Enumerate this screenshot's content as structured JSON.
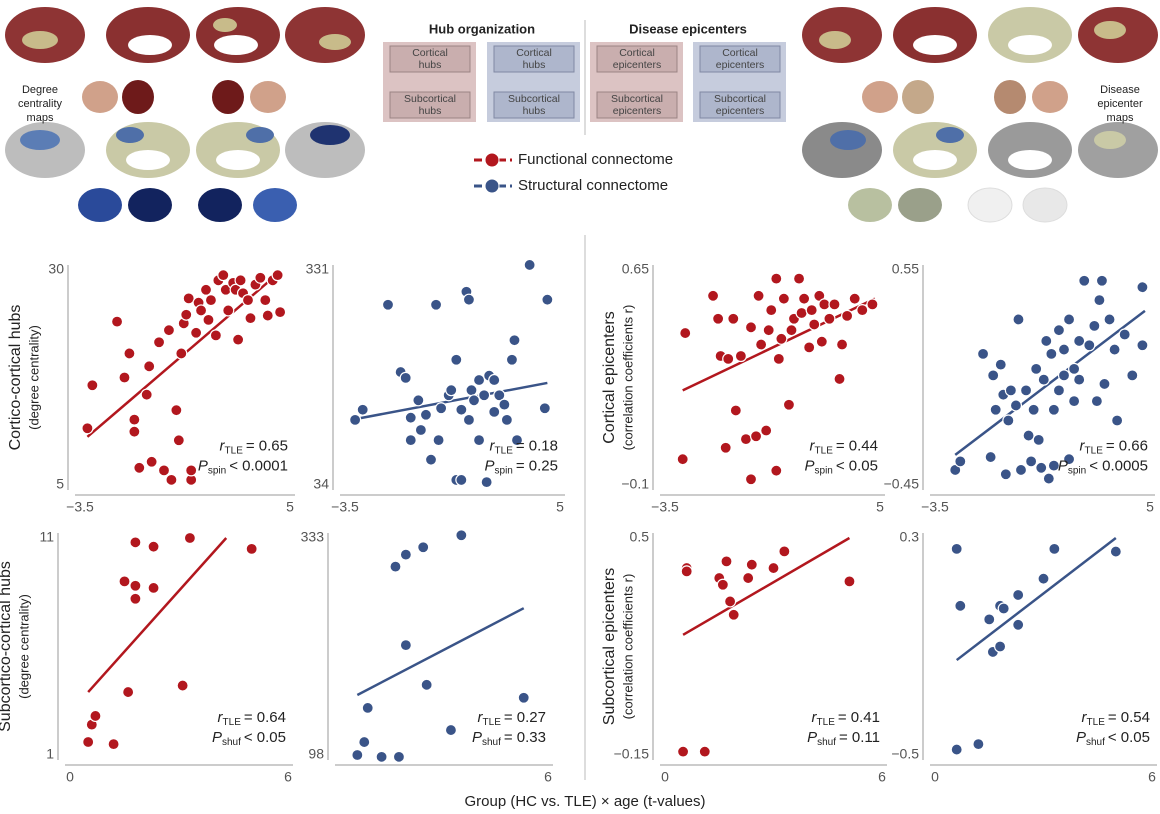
{
  "header": {
    "hub": {
      "title": "Hub organization",
      "functional": [
        [
          "Cortical",
          "hubs"
        ],
        [
          "Subcortical",
          "hubs"
        ]
      ],
      "structural": [
        [
          "Cortical",
          "hubs"
        ],
        [
          "Subcortical",
          "hubs"
        ]
      ]
    },
    "epi": {
      "title": "Disease epicenters",
      "functional": [
        [
          "Cortical",
          "epicenters"
        ],
        [
          "Subcortical",
          "epicenters"
        ]
      ],
      "structural": [
        [
          "Cortical",
          "epicenters"
        ],
        [
          "Subcortical",
          "epicenters"
        ]
      ]
    }
  },
  "brain_labels": {
    "left": [
      "Degree",
      "centrality",
      "maps"
    ],
    "right": [
      "Disease",
      "epicenter",
      "maps"
    ]
  },
  "legend": [
    {
      "name": "Functional connectome",
      "color": "#b2171e"
    },
    {
      "name": "Structural connectome",
      "color": "#3a5488"
    }
  ],
  "xlabel": "Group (HC vs. TLE) × age (t-values)",
  "chart_data": [
    {
      "type": "scatter",
      "ylabel": "Cortico-cortical hubs",
      "ylabel_sub": "(degree centrality)",
      "color": "#b2171e",
      "xlim": [
        -3.5,
        5
      ],
      "xticks": [
        {
          "value": -3.5,
          "label": "−3.5"
        },
        5
      ],
      "ylim": [
        5,
        30
      ],
      "yticks": [
        5,
        30
      ],
      "x": [
        -3.2,
        -3.0,
        -2.0,
        -1.7,
        -1.5,
        -1.3,
        -1.3,
        -1.1,
        -0.8,
        -0.7,
        -0.6,
        -0.3,
        -0.1,
        0.1,
        0.2,
        0.4,
        0.5,
        0.6,
        0.7,
        0.8,
        0.9,
        1.0,
        1.0,
        1.2,
        1.3,
        1.4,
        1.6,
        1.7,
        1.8,
        2.0,
        2.1,
        2.3,
        2.4,
        2.5,
        2.7,
        2.8,
        2.9,
        3.0,
        3.1,
        3.3,
        3.4,
        3.6,
        3.8,
        4.0,
        4.1,
        4.3,
        4.5,
        4.6
      ],
      "values": [
        11.6,
        16.6,
        24.0,
        17.5,
        20.3,
        12.6,
        11.2,
        7.0,
        15.5,
        18.8,
        7.7,
        21.6,
        6.7,
        23.0,
        5.6,
        13.7,
        10.2,
        20.3,
        23.8,
        24.8,
        26.7,
        5.6,
        6.7,
        22.7,
        26.2,
        25.3,
        27.7,
        24.2,
        26.5,
        22.4,
        28.8,
        29.4,
        27.7,
        25.3,
        28.5,
        27.7,
        21.9,
        28.8,
        27.3,
        26.5,
        24.4,
        28.3,
        29.1,
        26.5,
        24.7,
        28.8,
        29.4,
        25.1
      ],
      "fit": {
        "x": [
          -3.2,
          4.6
        ],
        "values": [
          10.6,
          29.8
        ]
      },
      "stats": [
        [
          "r",
          "TLE",
          "= 0.65"
        ],
        [
          "P",
          "spin",
          "< 0.0001"
        ]
      ]
    },
    {
      "type": "scatter",
      "color": "#3a5488",
      "xlim": [
        -3.5,
        5
      ],
      "xticks": [
        {
          "value": -3.5,
          "label": "−3.5"
        },
        5
      ],
      "ylim": [
        34,
        331
      ],
      "yticks": [
        34,
        331
      ],
      "x": [
        -3.1,
        -2.8,
        -1.8,
        -1.3,
        -1.1,
        -0.9,
        -0.9,
        -0.6,
        -0.5,
        -0.3,
        -0.1,
        0.1,
        0.2,
        0.3,
        0.6,
        0.7,
        0.9,
        0.9,
        1.1,
        1.1,
        1.3,
        1.4,
        1.4,
        1.5,
        1.6,
        1.8,
        1.8,
        2.0,
        2.1,
        2.2,
        2.4,
        2.4,
        2.6,
        2.8,
        2.9,
        3.1,
        3.2,
        3.3,
        3.8,
        4.4,
        4.5
      ],
      "values": [
        124,
        138,
        283,
        190,
        182,
        127,
        96,
        151,
        110,
        131,
        69,
        283,
        96,
        140,
        158,
        165,
        207,
        41,
        138,
        41,
        301,
        124,
        290,
        165,
        151,
        179,
        96,
        158,
        38,
        185,
        135,
        179,
        158,
        145,
        124,
        207,
        234,
        96,
        338,
        140,
        290
      ],
      "fit": {
        "x": [
          -3.1,
          4.5
        ],
        "values": [
          125,
          175
        ]
      },
      "stats": [
        [
          "r",
          "TLE",
          "= 0.18"
        ],
        [
          "P",
          "spin",
          "= 0.25"
        ]
      ]
    },
    {
      "type": "scatter",
      "ylabel": "Cortical epicenters",
      "ylabel_sub": "(correlation coefficients r)",
      "color": "#b2171e",
      "xlim": [
        -3.5,
        5
      ],
      "xticks": [
        {
          "value": -3.5,
          "label": "−3.5"
        },
        5
      ],
      "ylim": [
        -0.1,
        0.65
      ],
      "yticks": [
        {
          "value": -0.1,
          "label": "−0.1"
        },
        0.65
      ],
      "x": [
        -2.8,
        -2.7,
        -1.6,
        -1.4,
        -1.3,
        -1.1,
        -1.0,
        -0.8,
        -0.7,
        -0.5,
        -0.3,
        -0.1,
        -0.1,
        0.1,
        0.2,
        0.3,
        0.5,
        0.6,
        0.7,
        0.9,
        0.9,
        1.0,
        1.1,
        1.2,
        1.4,
        1.5,
        1.6,
        1.8,
        1.9,
        2.0,
        2.2,
        2.3,
        2.4,
        2.6,
        2.7,
        2.8,
        3.0,
        3.2,
        3.4,
        3.5,
        3.7,
        4.0,
        4.3,
        4.7
      ],
      "values": [
        -0.01,
        0.43,
        0.56,
        0.48,
        0.35,
        0.03,
        0.34,
        0.48,
        0.16,
        0.35,
        0.06,
        -0.08,
        0.45,
        0.07,
        0.56,
        0.39,
        0.09,
        0.44,
        0.51,
        0.62,
        -0.05,
        0.34,
        0.41,
        0.55,
        0.18,
        0.44,
        0.48,
        0.62,
        0.5,
        0.55,
        0.38,
        0.51,
        0.46,
        0.56,
        0.4,
        0.53,
        0.48,
        0.53,
        0.27,
        0.39,
        0.49,
        0.55,
        0.51,
        0.53
      ],
      "fit": {
        "x": [
          -2.8,
          4.8
        ],
        "values": [
          0.23,
          0.55
        ]
      },
      "stats": [
        [
          "r",
          "TLE",
          "= 0.44"
        ],
        [
          "P",
          "spin",
          "< 0.05"
        ]
      ]
    },
    {
      "type": "scatter",
      "color": "#3a5488",
      "xlim": [
        -3.5,
        5
      ],
      "xticks": [
        {
          "value": -3.5,
          "label": "−3.5"
        },
        5
      ],
      "ylim": [
        -0.45,
        0.55
      ],
      "yticks": [
        {
          "value": -0.45,
          "label": "−0.45"
        },
        0.55
      ],
      "x": [
        -2.7,
        -2.5,
        -1.6,
        -1.3,
        -1.2,
        -1.1,
        -0.9,
        -0.8,
        -0.7,
        -0.6,
        -0.5,
        -0.3,
        -0.2,
        -0.1,
        0.1,
        0.2,
        0.3,
        0.4,
        0.5,
        0.6,
        0.7,
        0.8,
        0.9,
        1.0,
        1.1,
        1.2,
        1.2,
        1.4,
        1.4,
        1.6,
        1.6,
        1.8,
        1.8,
        2.0,
        2.0,
        2.2,
        2.2,
        2.4,
        2.6,
        2.8,
        2.9,
        3.0,
        3.1,
        3.2,
        3.4,
        3.6,
        3.7,
        4.0,
        4.3,
        4.7,
        4.7
      ],
      "values": [
        -0.38,
        -0.34,
        0.16,
        -0.32,
        0.06,
        -0.1,
        0.11,
        -0.03,
        -0.4,
        -0.15,
        -0.01,
        -0.08,
        0.32,
        -0.38,
        -0.01,
        -0.22,
        -0.34,
        -0.1,
        0.09,
        -0.24,
        -0.37,
        0.04,
        0.22,
        -0.42,
        0.16,
        -0.1,
        -0.36,
        0.27,
        -0.01,
        0.06,
        0.18,
        -0.33,
        0.32,
        -0.06,
        0.09,
        0.22,
        0.04,
        0.5,
        0.2,
        0.29,
        -0.06,
        0.41,
        0.5,
        0.02,
        0.32,
        0.18,
        -0.15,
        0.25,
        0.06,
        0.2,
        0.47
      ],
      "fit": {
        "x": [
          -2.7,
          4.8
        ],
        "values": [
          -0.31,
          0.36
        ]
      },
      "stats": [
        [
          "r",
          "TLE",
          "= 0.66"
        ],
        [
          "P",
          "spin",
          "< 0.0005"
        ]
      ]
    },
    {
      "type": "scatter",
      "ylabel": "Subcortico-cortical hubs",
      "ylabel_sub": "(degree centrality)",
      "color": "#b2171e",
      "xlim": [
        0,
        6
      ],
      "xticks": [
        0,
        6
      ],
      "ylim": [
        1,
        11
      ],
      "yticks": [
        1,
        11
      ],
      "x": [
        0.5,
        0.6,
        0.7,
        1.2,
        1.5,
        1.6,
        1.8,
        1.8,
        1.8,
        2.3,
        2.3,
        3.1,
        3.3,
        5.0
      ],
      "values": [
        1.6,
        2.4,
        2.8,
        1.5,
        9.0,
        3.9,
        10.8,
        8.8,
        8.2,
        8.7,
        10.6,
        4.2,
        11.0,
        10.5
      ],
      "fit": {
        "x": [
          0.5,
          4.3
        ],
        "values": [
          3.9,
          11
        ]
      },
      "stats": [
        [
          "r",
          "TLE",
          "= 0.64"
        ],
        [
          "P",
          "shuf",
          "< 0.05"
        ]
      ]
    },
    {
      "type": "scatter",
      "color": "#3a5488",
      "xlim": [
        0,
        6
      ],
      "xticks": [
        6
      ],
      "ylim": [
        98,
        333
      ],
      "yticks": [
        98,
        333
      ],
      "x": [
        0.5,
        0.7,
        0.8,
        1.2,
        1.6,
        1.7,
        1.9,
        1.9,
        2.4,
        2.5,
        3.2,
        3.5,
        5.3
      ],
      "values": [
        98,
        112,
        149,
        96,
        302,
        96,
        315,
        217,
        323,
        174,
        125,
        336,
        160
      ],
      "fit": {
        "x": [
          0.5,
          5.3
        ],
        "values": [
          163,
          257
        ]
      },
      "stats": [
        [
          "r",
          "TLE",
          "= 0.27"
        ],
        [
          "P",
          "shuf",
          "= 0.33"
        ]
      ]
    },
    {
      "type": "scatter",
      "ylabel": "Subcortical epicenters",
      "ylabel_sub": "(correlation coefficients r)",
      "color": "#b2171e",
      "xlim": [
        0,
        6
      ],
      "xticks": [
        0,
        6
      ],
      "ylim": [
        -0.15,
        0.5
      ],
      "yticks": [
        {
          "value": -0.15,
          "label": "−0.15"
        },
        0.5
      ],
      "x": [
        0.5,
        1.1,
        0.6,
        0.6,
        1.5,
        1.6,
        1.7,
        1.8,
        1.9,
        2.3,
        2.4,
        3.0,
        3.3,
        5.1
      ],
      "values": [
        -0.14,
        -0.14,
        0.41,
        0.4,
        0.38,
        0.36,
        0.43,
        0.31,
        0.27,
        0.38,
        0.42,
        0.41,
        0.46,
        0.37
      ],
      "fit": {
        "x": [
          0.5,
          5.1
        ],
        "values": [
          0.21,
          0.5
        ]
      },
      "stats": [
        [
          "r",
          "TLE",
          "= 0.41"
        ],
        [
          "P",
          "shuf",
          "= 0.11"
        ]
      ]
    },
    {
      "type": "scatter",
      "color": "#3a5488",
      "xlim": [
        0,
        6
      ],
      "xticks": [
        0,
        6
      ],
      "ylim": [
        -0.5,
        0.3
      ],
      "yticks": [
        {
          "value": -0.5,
          "label": "−0.5"
        },
        0.3
      ],
      "x": [
        0.6,
        1.2,
        0.6,
        0.7,
        1.5,
        1.6,
        1.8,
        1.8,
        1.9,
        2.3,
        2.3,
        3.0,
        3.3,
        5.0
      ],
      "values": [
        -0.48,
        -0.46,
        0.26,
        0.05,
        0.0,
        -0.12,
        -0.1,
        0.05,
        0.04,
        0.09,
        -0.02,
        0.15,
        0.26,
        0.25
      ],
      "fit": {
        "x": [
          0.6,
          5.0
        ],
        "values": [
          -0.15,
          0.3
        ]
      },
      "stats": [
        [
          "r",
          "TLE",
          "= 0.54"
        ],
        [
          "P",
          "shuf",
          "< 0.05"
        ]
      ]
    }
  ]
}
